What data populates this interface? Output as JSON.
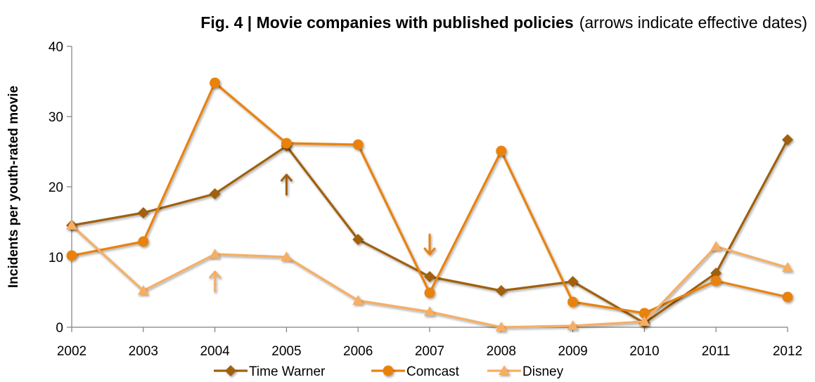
{
  "chart_data": {
    "type": "line",
    "title_bold": "Fig. 4 | Movie companies with published policies",
    "title_rest": "(arrows indicate effective dates)",
    "xlabel": "",
    "ylabel": "Incidents per youth-rated movie",
    "x": [
      "2002",
      "2003",
      "2004",
      "2005",
      "2006",
      "2007",
      "2008",
      "2009",
      "2010",
      "2011",
      "2012"
    ],
    "ylim": [
      0,
      40
    ],
    "yticks": [
      0,
      10,
      20,
      30,
      40
    ],
    "grid": false,
    "legend_position": "bottom",
    "series": [
      {
        "name": "Time Warner",
        "marker": "diamond",
        "color": "#a0600f",
        "values": [
          14.5,
          16.3,
          19.0,
          25.8,
          12.5,
          7.2,
          5.2,
          6.5,
          0.6,
          7.7,
          26.7
        ]
      },
      {
        "name": "Comcast",
        "marker": "circle",
        "color": "#e9820c",
        "values": [
          10.2,
          12.2,
          34.8,
          26.2,
          26.0,
          4.9,
          25.1,
          3.6,
          2.0,
          6.6,
          4.3
        ]
      },
      {
        "name": "Disney",
        "marker": "triangle",
        "color": "#f6ae63",
        "values": [
          14.5,
          5.2,
          10.4,
          10.0,
          3.8,
          2.2,
          0.0,
          0.2,
          0.8,
          11.5,
          8.5
        ]
      }
    ],
    "annotations": [
      {
        "type": "arrow",
        "direction": "up",
        "x": "2004",
        "y": 6.5,
        "color": "#f6ae63"
      },
      {
        "type": "arrow",
        "direction": "up",
        "x": "2005",
        "y": 20.3,
        "color": "#a0600f"
      },
      {
        "type": "arrow",
        "direction": "down",
        "x": "2007",
        "y": 11.8,
        "color": "#e9820c"
      }
    ]
  }
}
